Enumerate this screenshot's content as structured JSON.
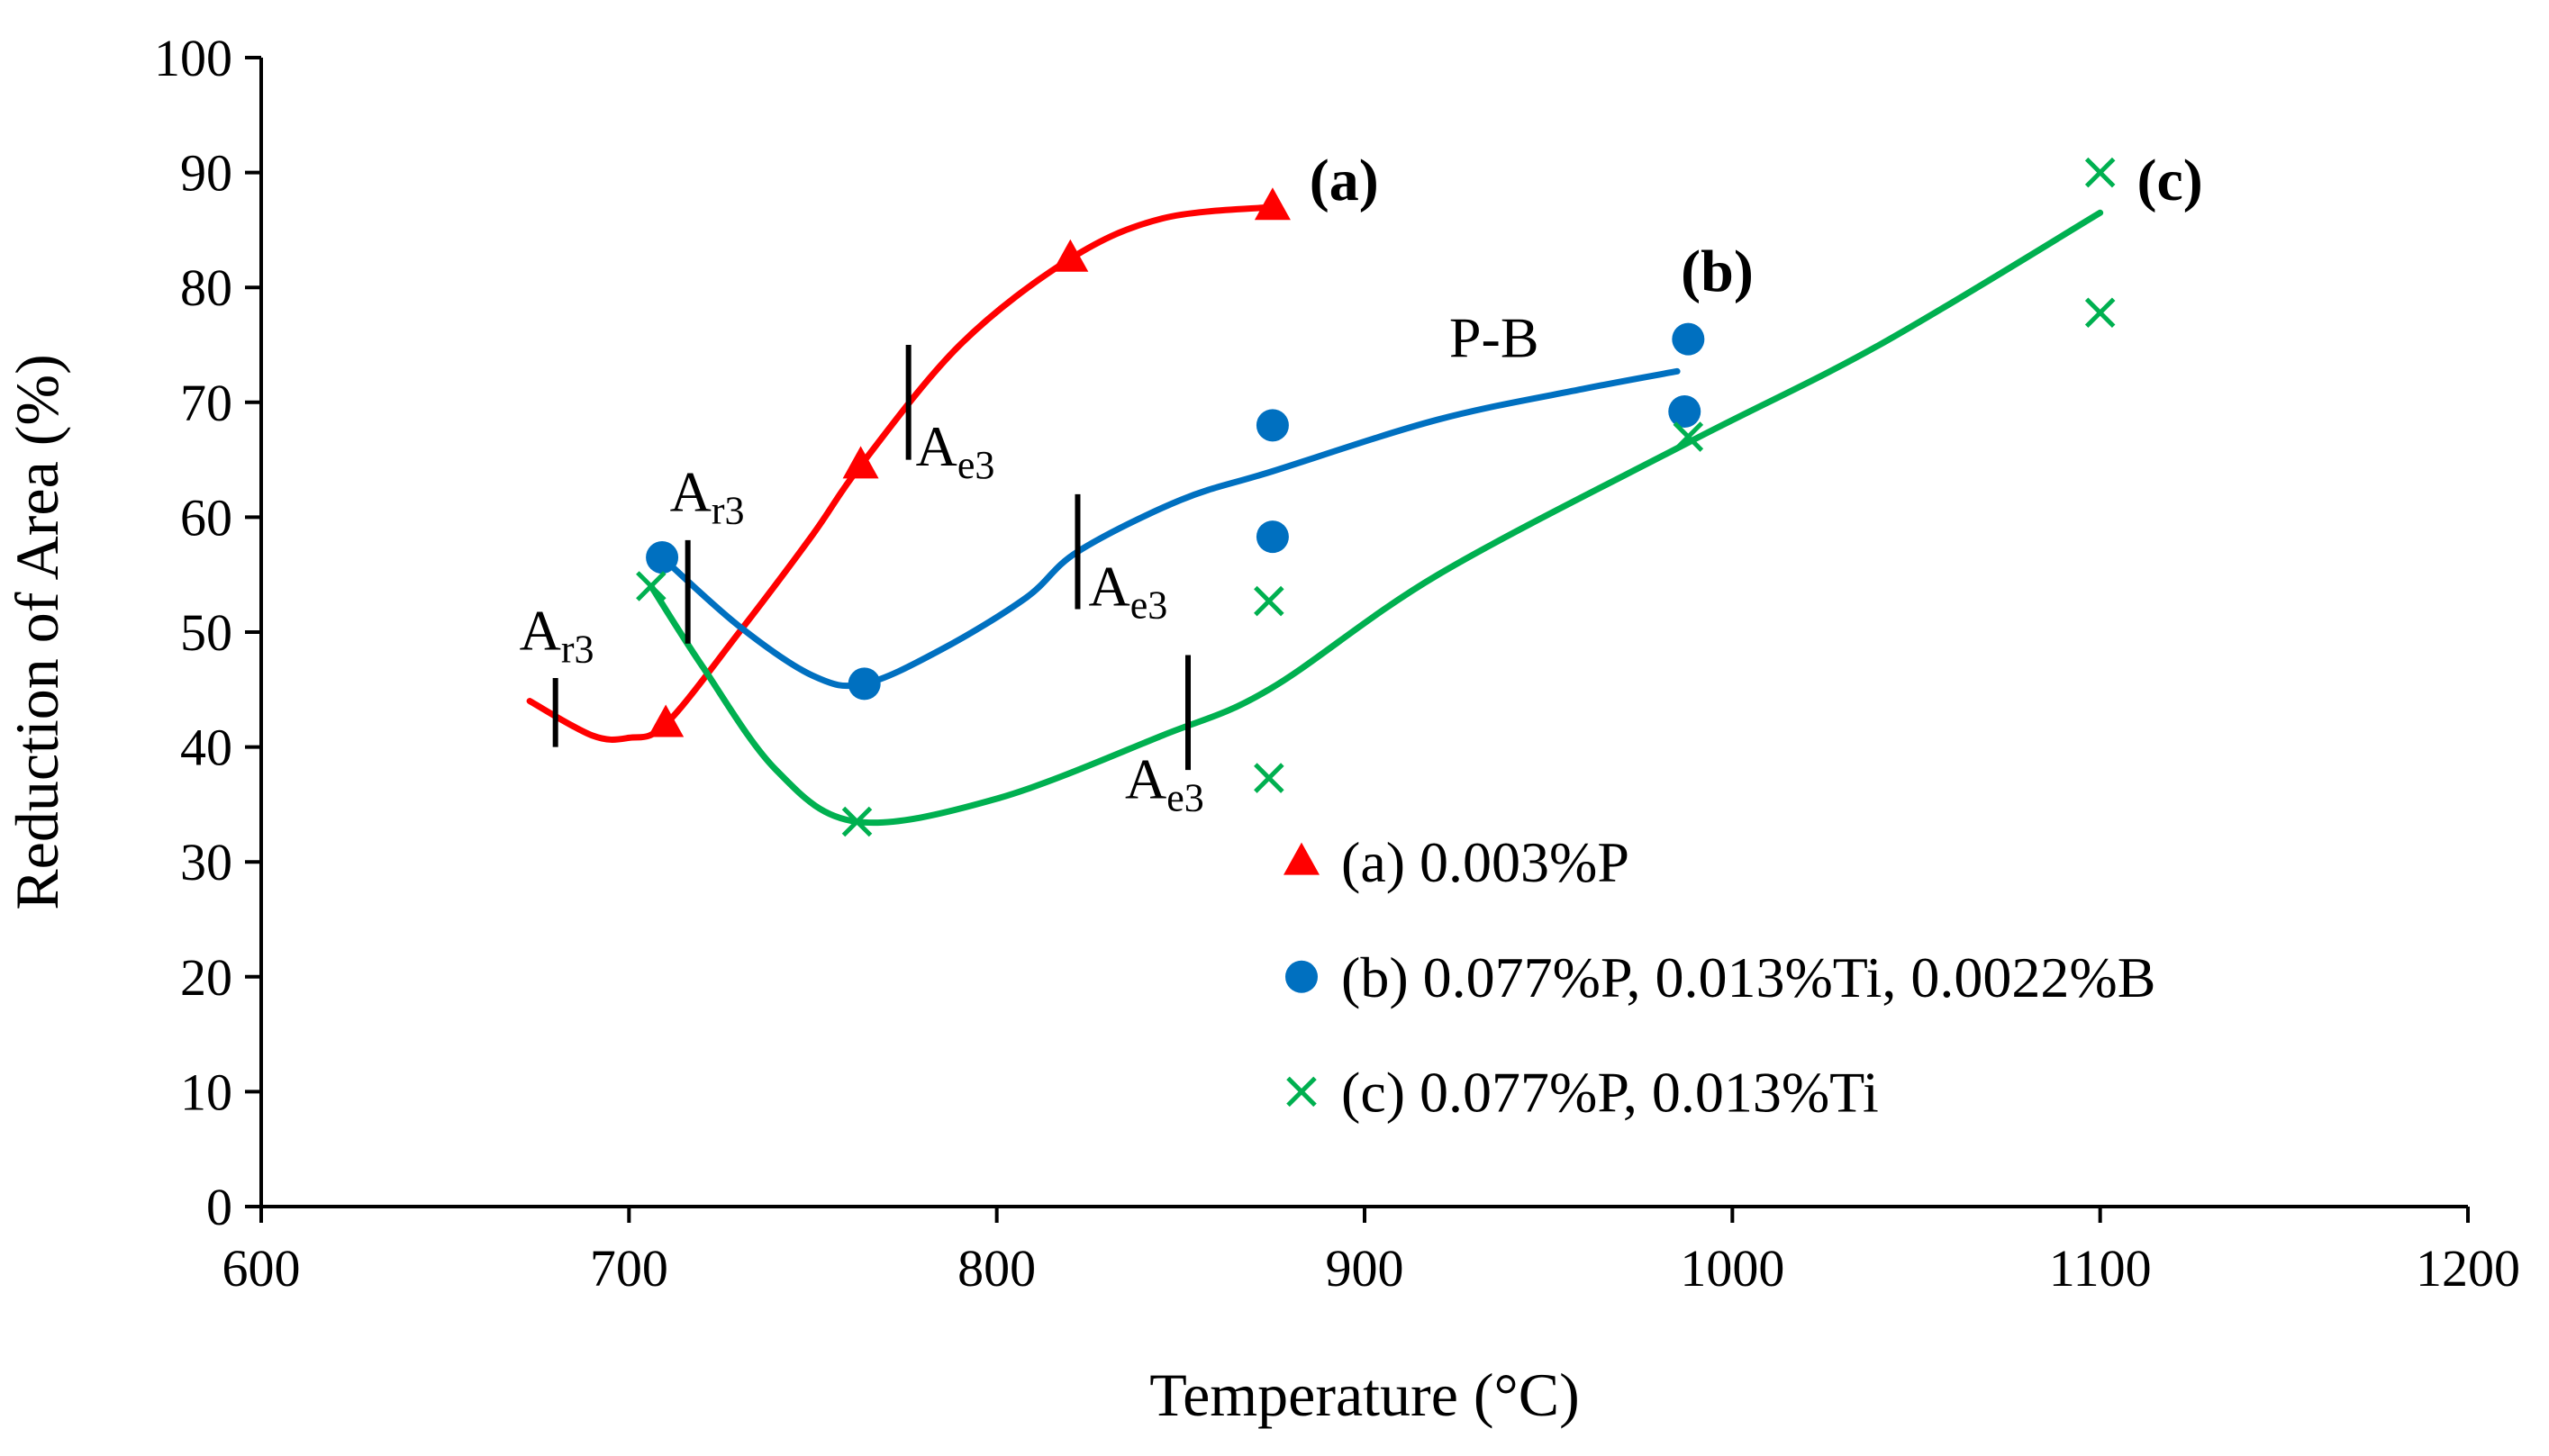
{
  "chart_data": {
    "type": "scatter",
    "title": "",
    "xlabel": "Temperature (°C)",
    "ylabel": "Reduction of Area (%)",
    "xlim": [
      600,
      1200
    ],
    "ylim": [
      0,
      100
    ],
    "x_ticks": [
      600,
      700,
      800,
      900,
      1000,
      1100,
      1200
    ],
    "y_ticks": [
      0,
      10,
      20,
      30,
      40,
      50,
      60,
      70,
      80,
      90,
      100
    ],
    "grid": false,
    "legend_position": "bottom-right",
    "series": [
      {
        "id": "a",
        "name": "(a) 0.003%P",
        "label": "(a)",
        "color": "#ff0000",
        "marker": "triangle",
        "points": [
          [
            710,
            42
          ],
          [
            763,
            64.5
          ],
          [
            820,
            82.5
          ],
          [
            875,
            87
          ]
        ],
        "trend": [
          [
            673,
            44
          ],
          [
            690,
            41
          ],
          [
            700,
            40.8
          ],
          [
            710,
            42
          ],
          [
            730,
            50
          ],
          [
            750,
            58.5
          ],
          [
            763,
            64.5
          ],
          [
            790,
            75
          ],
          [
            820,
            82.5
          ],
          [
            845,
            86
          ],
          [
            875,
            87
          ]
        ]
      },
      {
        "id": "b",
        "name": "(b) 0.077%P, 0.013%Ti, 0.0022%B",
        "label": "(b)",
        "color": "#0070c0",
        "marker": "circle",
        "points": [
          [
            709,
            56.5
          ],
          [
            764,
            45.5
          ],
          [
            875,
            68
          ],
          [
            875,
            58.3
          ],
          [
            988,
            75.5
          ],
          [
            987,
            69.2
          ]
        ],
        "trend": [
          [
            709,
            56.5
          ],
          [
            730,
            50.5
          ],
          [
            750,
            46.2
          ],
          [
            764,
            45.5
          ],
          [
            785,
            48.5
          ],
          [
            808,
            53
          ],
          [
            822,
            57
          ],
          [
            850,
            61.5
          ],
          [
            875,
            64
          ],
          [
            920,
            68.5
          ],
          [
            960,
            71.2
          ],
          [
            985,
            72.7
          ]
        ]
      },
      {
        "id": "c",
        "name": "(c) 0.077%P, 0.013%Ti",
        "label": "(c)",
        "color": "#00b050",
        "marker": "x",
        "points": [
          [
            706,
            54
          ],
          [
            762,
            33.5
          ],
          [
            874,
            52.7
          ],
          [
            874,
            37.3
          ],
          [
            988,
            67
          ],
          [
            1100,
            90
          ],
          [
            1100,
            77.8
          ]
        ],
        "trend": [
          [
            706,
            54
          ],
          [
            720,
            47
          ],
          [
            740,
            38
          ],
          [
            762,
            33.5
          ],
          [
            800,
            35.5
          ],
          [
            845,
            41
          ],
          [
            874,
            45
          ],
          [
            920,
            55
          ],
          [
            988,
            66.5
          ],
          [
            1040,
            75
          ],
          [
            1100,
            86.5
          ]
        ]
      }
    ],
    "annotations": [
      {
        "id": "ar3-a",
        "main": "A",
        "sub": "r3",
        "mark": [
          680,
          43
        ]
      },
      {
        "id": "ar3-c",
        "main": "A",
        "sub": "r3",
        "mark": [
          716,
          53.5
        ]
      },
      {
        "id": "ae3-a",
        "main": "A",
        "sub": "e3",
        "mark": [
          776,
          70
        ]
      },
      {
        "id": "ae3-b",
        "main": "A",
        "sub": "e3",
        "mark": [
          822,
          57
        ]
      },
      {
        "id": "ae3-c",
        "main": "A",
        "sub": "e3",
        "mark": [
          852,
          43
        ]
      }
    ],
    "pb_label": "P-B"
  }
}
